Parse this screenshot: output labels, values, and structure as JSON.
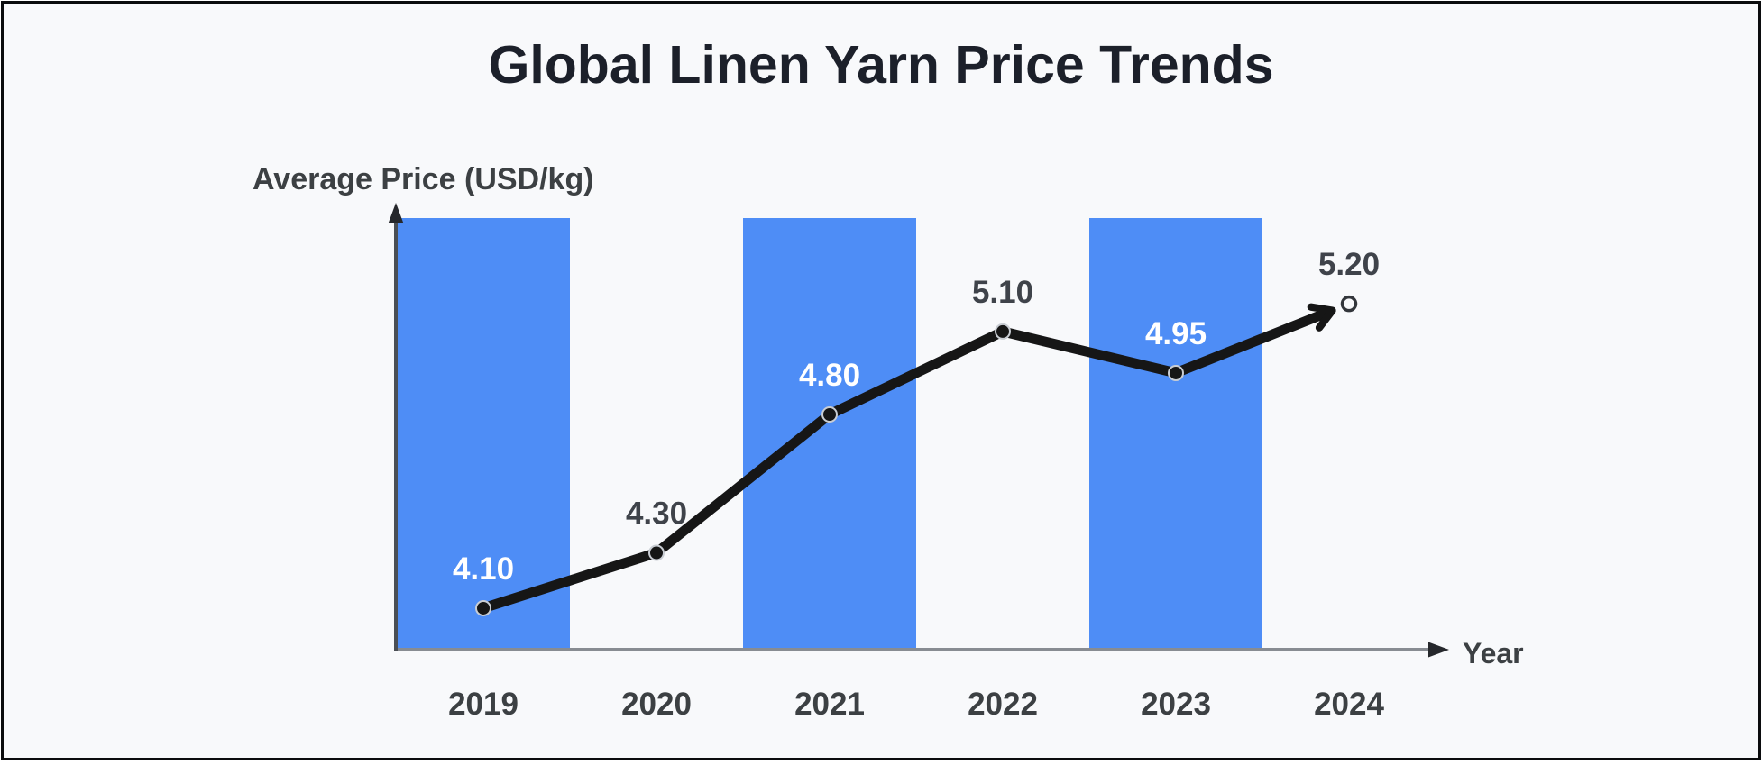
{
  "chart_data": {
    "type": "line",
    "title": "Global Linen Yarn Price Trends",
    "xlabel": "Year",
    "ylabel": "Average Price (USD/kg)",
    "categories": [
      "2019",
      "2020",
      "2021",
      "2022",
      "2023",
      "2024"
    ],
    "values": [
      4.1,
      4.3,
      4.8,
      5.1,
      4.95,
      5.2
    ],
    "point_labels": [
      "4.10",
      "4.30",
      "4.80",
      "5.10",
      "4.95",
      "5.20"
    ],
    "highlighted_categories": [
      "2019",
      "2021",
      "2023"
    ],
    "highlight_bands_full_height": true,
    "ylim": [
      3.95,
      5.51
    ],
    "grid": false,
    "legend": false,
    "last_point_style": "open-circle-with-arrowhead",
    "colors": {
      "band": "#4e8df6",
      "line": "#161616",
      "title": "#1c202a",
      "axis_text": "#3c4043",
      "label_on_band": "#ffffff",
      "label_off_band": "#3f434a",
      "x_axis": "#888c92",
      "y_axis": "#4a4f55",
      "axis_arrow": "#26282c",
      "point_ring": "#c9cdd3",
      "open_point_stroke": "#33363b",
      "background": "#f8f9fb",
      "frame_border": "#0b0c0e"
    }
  }
}
